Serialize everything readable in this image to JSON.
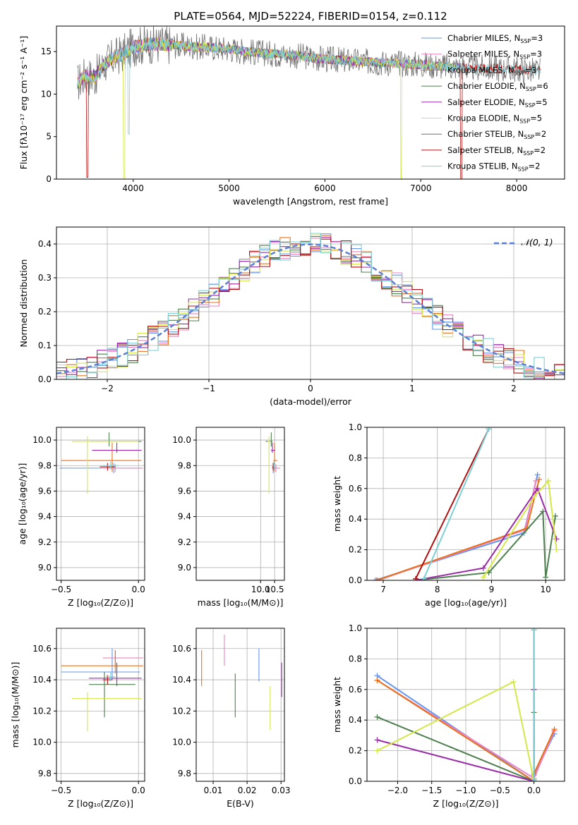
{
  "title": "PLATE=0564, MJD=52224, FIBERID=0154, z=0.112",
  "colors": {
    "chabrier_miles": "#6495ed",
    "salpeter_miles": "#ee82c0",
    "kroupa_miles": "#e8721c",
    "chabrier_elodie": "#4e7f4e",
    "salpeter_elodie": "#9a2ca8",
    "kroupa_elodie": "#d4e848",
    "chabrier_stelib": "#707070",
    "salpeter_stelib": "#b01010",
    "kroupa_stelib": "#7ed0d4"
  },
  "chart_data": [
    {
      "id": "spectrum",
      "type": "line",
      "title": "PLATE=0564, MJD=52224, FIBERID=0154, z=0.112",
      "xlabel": "wavelength [Angstrom, rest frame]",
      "ylabel": "Flux [fλ10⁻¹⁷ erg cm⁻² s⁻¹ A⁻¹]",
      "xlim": [
        3200,
        8500
      ],
      "ylim": [
        0,
        18
      ],
      "xticks": [
        "4000",
        "5000",
        "6000",
        "7000",
        "8000"
      ],
      "yticks": [
        "0",
        "5",
        "10",
        "15"
      ],
      "legend_position": "top-right",
      "continuum": {
        "x": [
          3420,
          3500,
          3600,
          3700,
          3800,
          3900,
          4000,
          4200,
          4400,
          4600,
          4800,
          5000,
          5200,
          5500,
          5800,
          6000,
          6300,
          6600,
          6800,
          7000,
          7200,
          7500,
          7800,
          8000,
          8250
        ],
        "y": [
          11.3,
          12.2,
          12.0,
          13.5,
          14.3,
          14.8,
          15.6,
          15.9,
          15.8,
          15.6,
          15.5,
          15.3,
          15.0,
          14.7,
          14.4,
          14.1,
          13.9,
          13.7,
          13.6,
          13.5,
          13.3,
          13.1,
          13.0,
          12.9,
          12.7
        ]
      },
      "dips": [
        {
          "series": "Salpeter STELIB",
          "x": 3520,
          "min": 0.2
        },
        {
          "series": "Kroupa ELODIE",
          "x": 3905,
          "min": 0
        },
        {
          "series": "Kroupa STELIB",
          "x": 3955,
          "min": 5.3
        },
        {
          "series": "Kroupa ELODIE",
          "x": 6795,
          "min": 0
        },
        {
          "series": "Salpeter STELIB",
          "x": 7420,
          "min": 0
        }
      ],
      "series": [
        {
          "name": "Chabrier MILES, N",
          "nssp": "3",
          "color": "#6495ed"
        },
        {
          "name": "Salpeter MILES, N",
          "nssp": "3",
          "color": "#ee82c0"
        },
        {
          "name": "Kroupa MILES, N",
          "nssp": "3",
          "color": "#e8721c"
        },
        {
          "name": "Chabrier ELODIE, N",
          "nssp": "6",
          "color": "#4e7f4e"
        },
        {
          "name": "Salpeter ELODIE, N",
          "nssp": "5",
          "color": "#9a2ca8"
        },
        {
          "name": "Kroupa ELODIE, N",
          "nssp": "5",
          "color": "#d4e848"
        },
        {
          "name": "Chabrier STELIB, N",
          "nssp": "2",
          "color": "#707070"
        },
        {
          "name": "Salpeter STELIB, N",
          "nssp": "2",
          "color": "#b01010"
        },
        {
          "name": "Kroupa STELIB, N",
          "nssp": "2",
          "color": "#7ed0d4"
        }
      ],
      "nssp_sub": "SSP"
    },
    {
      "id": "residuals",
      "type": "histogram",
      "xlabel": "(data-model)/error",
      "ylabel": "Normed distribution",
      "xlim": [
        -2.5,
        2.5
      ],
      "ylim": [
        0,
        0.45
      ],
      "xticks": [
        "−2",
        "−1",
        "0",
        "1",
        "2"
      ],
      "yticks": [
        "0.0",
        "0.1",
        "0.2",
        "0.3",
        "0.4"
      ],
      "grid": true,
      "legend_position": "top-right",
      "legend_label": "𝒩(0, 1)",
      "bin_width": 0.1,
      "normal_curve": {
        "mean": 0,
        "sigma": 1,
        "color": "#5b7fd6"
      }
    },
    {
      "id": "age_vs_Z",
      "type": "errorbar",
      "xlabel": "Z [log₁₀(Z/Z⊙)]",
      "ylabel": "age  [log₁₀(age/yr)]",
      "xlim": [
        -0.53,
        0.04
      ],
      "ylim": [
        8.9,
        10.1
      ],
      "xticks": [
        "−0.5",
        "0.0"
      ],
      "yticks": [
        "9.0",
        "9.2",
        "9.4",
        "9.6",
        "9.8",
        "10.0"
      ],
      "points": [
        {
          "series": "Chabrier MILES",
          "x": -0.16,
          "xerr": [
            0.35,
            0.18
          ],
          "y": 9.78,
          "yerr": [
            0.04,
            0.04
          ]
        },
        {
          "series": "Salpeter MILES",
          "x": -0.15,
          "xerr": [
            0.08,
            0.18
          ],
          "y": 9.78,
          "yerr": [
            0.03,
            0.03
          ]
        },
        {
          "series": "Kroupa MILES",
          "x": -0.17,
          "xerr": [
            0.33,
            0.19
          ],
          "y": 9.84,
          "yerr": [
            0.09,
            0.14
          ]
        },
        {
          "series": "Chabrier ELODIE",
          "x": -0.19,
          "xerr": [
            0.12,
            0.21
          ],
          "y": 9.99,
          "yerr": [
            0.04,
            0.07
          ]
        },
        {
          "series": "Salpeter ELODIE",
          "x": -0.14,
          "xerr": [
            0.16,
            0.16
          ],
          "y": 9.92,
          "yerr": [
            0.02,
            0.06
          ]
        },
        {
          "series": "Kroupa ELODIE",
          "x": -0.33,
          "xerr": [
            0.1,
            0.33
          ],
          "y": 9.99,
          "yerr": [
            0.41,
            0.04
          ]
        },
        {
          "series": "Salpeter STELIB",
          "x": -0.2,
          "xerr": [
            0.05,
            0.05
          ],
          "y": 9.79,
          "yerr": [
            0.03,
            0.03
          ]
        },
        {
          "series": "Kroupa STELIB",
          "x": -0.18,
          "xerr": [
            0.05,
            0.05
          ],
          "y": 9.8,
          "yerr": [
            0.03,
            0.03
          ]
        }
      ]
    },
    {
      "id": "age_vs_mass",
      "type": "errorbar",
      "xlabel": "mass [log₁₀(M/M⊙)]",
      "ylabel": "",
      "xlim": [
        7.7,
        10.85
      ],
      "ylim": [
        8.9,
        10.1
      ],
      "xticks": [
        "10.0",
        "10.5"
      ],
      "yticks": [
        "9.0",
        "9.2",
        "9.4",
        "9.6",
        "9.8",
        "10.0"
      ],
      "points": [
        {
          "series": "Chabrier MILES",
          "x": 10.45,
          "xerr": [
            0.05,
            0.15
          ],
          "y": 9.78,
          "yerr": [
            0.04,
            0.04
          ]
        },
        {
          "series": "Salpeter MILES",
          "x": 10.55,
          "xerr": [
            0.05,
            0.15
          ],
          "y": 9.78,
          "yerr": [
            0.03,
            0.03
          ]
        },
        {
          "series": "Kroupa MILES",
          "x": 10.5,
          "xerr": [
            0.05,
            0.1
          ],
          "y": 9.84,
          "yerr": [
            0.09,
            0.14
          ]
        },
        {
          "series": "Chabrier ELODIE",
          "x": 10.38,
          "xerr": [
            0.2,
            0.05
          ],
          "y": 9.99,
          "yerr": [
            0.04,
            0.07
          ]
        },
        {
          "series": "Salpeter ELODIE",
          "x": 10.42,
          "xerr": [
            0.05,
            0.1
          ],
          "y": 9.92,
          "yerr": [
            0.02,
            0.06
          ]
        },
        {
          "series": "Kroupa ELODIE",
          "x": 10.3,
          "xerr": [
            0.05,
            0.05
          ],
          "y": 9.99,
          "yerr": [
            0.41,
            0.04
          ]
        },
        {
          "series": "Salpeter STELIB",
          "x": 10.45,
          "xerr": [
            0.03,
            0.03
          ],
          "y": 9.79,
          "yerr": [
            0.03,
            0.03
          ]
        },
        {
          "series": "Kroupa STELIB",
          "x": 10.48,
          "xerr": [
            0.03,
            0.03
          ],
          "y": 9.8,
          "yerr": [
            0.03,
            0.03
          ]
        }
      ]
    },
    {
      "id": "weight_vs_age",
      "type": "line",
      "xlabel": "age  [log₁₀(age/yr)]",
      "ylabel": "mass weight",
      "xlim": [
        6.7,
        10.35
      ],
      "ylim": [
        0,
        1
      ],
      "xticks": [
        "7",
        "8",
        "9",
        "10"
      ],
      "yticks": [
        "0.0",
        "0.2",
        "0.4",
        "0.6",
        "0.8",
        "1.0"
      ],
      "grid": true,
      "series": [
        {
          "name": "Chabrier MILES",
          "x": [
            6.85,
            9.6,
            9.85
          ],
          "y": [
            0.0,
            0.31,
            0.69
          ]
        },
        {
          "name": "Salpeter MILES",
          "x": [
            6.9,
            9.62,
            9.82
          ],
          "y": [
            0.0,
            0.33,
            0.65
          ]
        },
        {
          "name": "Kroupa MILES",
          "x": [
            6.88,
            9.65,
            9.88
          ],
          "y": [
            0.0,
            0.34,
            0.66
          ]
        },
        {
          "name": "Chabrier ELODIE",
          "x": [
            7.6,
            8.95,
            9.95,
            10.0,
            10.18
          ],
          "y": [
            0.0,
            0.05,
            0.45,
            0.02,
            0.42
          ]
        },
        {
          "name": "Salpeter ELODIE",
          "x": [
            7.6,
            8.85,
            9.85,
            10.2
          ],
          "y": [
            0.0,
            0.08,
            0.6,
            0.27
          ]
        },
        {
          "name": "Kroupa ELODIE",
          "x": [
            8.85,
            9.8,
            10.05,
            10.2
          ],
          "y": [
            0.02,
            0.55,
            0.65,
            0.2
          ]
        },
        {
          "name": "Salpeter STELIB",
          "x": [
            7.6,
            8.95
          ],
          "y": [
            0.01,
            0.99
          ]
        },
        {
          "name": "Kroupa STELIB",
          "x": [
            7.75,
            8.95
          ],
          "y": [
            0.01,
            0.99
          ]
        }
      ]
    },
    {
      "id": "mass_vs_Z",
      "type": "errorbar",
      "xlabel": "Z [log₁₀(Z/Z⊙)]",
      "ylabel": "mass [log₁₀(M/M⊙)]",
      "xlim": [
        -0.53,
        0.04
      ],
      "ylim": [
        9.75,
        10.73
      ],
      "xticks": [
        "−0.5",
        "0.0"
      ],
      "yticks": [
        "9.8",
        "10.0",
        "10.2",
        "10.4",
        "10.6"
      ],
      "points": [
        {
          "series": "Chabrier MILES",
          "x": -0.17,
          "xerr": [
            0.33,
            0.18
          ],
          "y": 10.45,
          "yerr": [
            0.05,
            0.15
          ]
        },
        {
          "series": "Salpeter MILES",
          "x": -0.15,
          "xerr": [
            0.08,
            0.18
          ],
          "y": 10.54,
          "yerr": [
            0.05,
            0.05
          ]
        },
        {
          "series": "Kroupa MILES",
          "x": -0.15,
          "xerr": [
            0.35,
            0.18
          ],
          "y": 10.49,
          "yerr": [
            0.05,
            0.1
          ]
        },
        {
          "series": "Chabrier ELODIE",
          "x": -0.22,
          "xerr": [
            0.1,
            0.2
          ],
          "y": 10.37,
          "yerr": [
            0.21,
            0.08
          ]
        },
        {
          "series": "Salpeter ELODIE",
          "x": -0.14,
          "xerr": [
            0.18,
            0.16
          ],
          "y": 10.41,
          "yerr": [
            0.05,
            0.1
          ]
        },
        {
          "series": "Kroupa ELODIE",
          "x": -0.33,
          "xerr": [
            0.1,
            0.35
          ],
          "y": 10.28,
          "yerr": [
            0.21,
            0.04
          ]
        },
        {
          "series": "Salpeter STELIB",
          "x": -0.2,
          "xerr": [
            0.03,
            0.03
          ],
          "y": 10.4,
          "yerr": [
            0.03,
            0.03
          ]
        },
        {
          "series": "Kroupa STELIB",
          "x": -0.18,
          "xerr": [
            0.03,
            0.03
          ],
          "y": 10.42,
          "yerr": [
            0.03,
            0.03
          ]
        }
      ]
    },
    {
      "id": "mass_vs_ebv",
      "type": "errorbar",
      "xlabel": "E(B-V)",
      "ylabel": "",
      "xlim": [
        0.005,
        0.031
      ],
      "ylim": [
        9.75,
        10.73
      ],
      "xticks": [
        "0.01",
        "0.02",
        "0.03"
      ],
      "yticks": [
        "9.8",
        "10.0",
        "10.2",
        "10.4",
        "10.6"
      ],
      "points": [
        {
          "series": "Kroupa MILES",
          "x": 0.0066,
          "y": 10.47,
          "yerr": [
            0.11,
            0.12
          ]
        },
        {
          "series": "Salpeter MILES",
          "x": 0.0133,
          "y": 10.59,
          "yerr": [
            0.1,
            0.1
          ]
        },
        {
          "series": "Chabrier ELODIE",
          "x": 0.0165,
          "y": 10.3,
          "yerr": [
            0.14,
            0.14
          ]
        },
        {
          "series": "Chabrier MILES",
          "x": 0.0235,
          "y": 10.49,
          "yerr": [
            0.1,
            0.11
          ]
        },
        {
          "series": "Kroupa ELODIE",
          "x": 0.0268,
          "y": 10.26,
          "yerr": [
            0.18,
            0.1
          ]
        },
        {
          "series": "Salpeter ELODIE",
          "x": 0.0302,
          "y": 10.4,
          "yerr": [
            0.11,
            0.11
          ]
        }
      ]
    },
    {
      "id": "weight_vs_Z",
      "type": "line",
      "xlabel": "Z [log₁₀(Z/Z⊙)]",
      "ylabel": "mass weight",
      "xlim": [
        -2.45,
        0.45
      ],
      "ylim": [
        0,
        1
      ],
      "xticks": [
        "−2.0",
        "−1.5",
        "−1.0",
        "−0.5",
        "0.0"
      ],
      "yticks": [
        "0.0",
        "0.2",
        "0.4",
        "0.6",
        "0.8",
        "1.0"
      ],
      "grid": true,
      "series": [
        {
          "name": "Chabrier MILES",
          "x": [
            -2.3,
            0.0,
            0.0,
            0.3
          ],
          "y": [
            0.69,
            0.0,
            0.04,
            0.31
          ]
        },
        {
          "name": "Salpeter MILES",
          "x": [
            -2.3,
            0.0,
            0.3
          ],
          "y": [
            0.66,
            0.02,
            0.33
          ]
        },
        {
          "name": "Kroupa MILES",
          "x": [
            -2.3,
            0.0,
            0.0,
            0.3
          ],
          "y": [
            0.66,
            0.0,
            0.05,
            0.34
          ]
        },
        {
          "name": "Chabrier ELODIE",
          "x": [
            -2.3,
            0.0,
            0.0,
            0.0
          ],
          "y": [
            0.42,
            0.0,
            0.45,
            0.02
          ]
        },
        {
          "name": "Salpeter ELODIE",
          "x": [
            -2.3,
            0.0,
            0.0
          ],
          "y": [
            0.27,
            0.0,
            0.6
          ]
        },
        {
          "name": "Kroupa ELODIE",
          "x": [
            -2.3,
            -0.3,
            0.0,
            0.0
          ],
          "y": [
            0.2,
            0.65,
            0.0,
            0.02
          ]
        },
        {
          "name": "Salpeter STELIB",
          "x": [
            0.0,
            0.0
          ],
          "y": [
            0.01,
            0.99
          ]
        },
        {
          "name": "Kroupa STELIB",
          "x": [
            0.0,
            0.0
          ],
          "y": [
            0.01,
            0.99
          ]
        }
      ]
    }
  ]
}
